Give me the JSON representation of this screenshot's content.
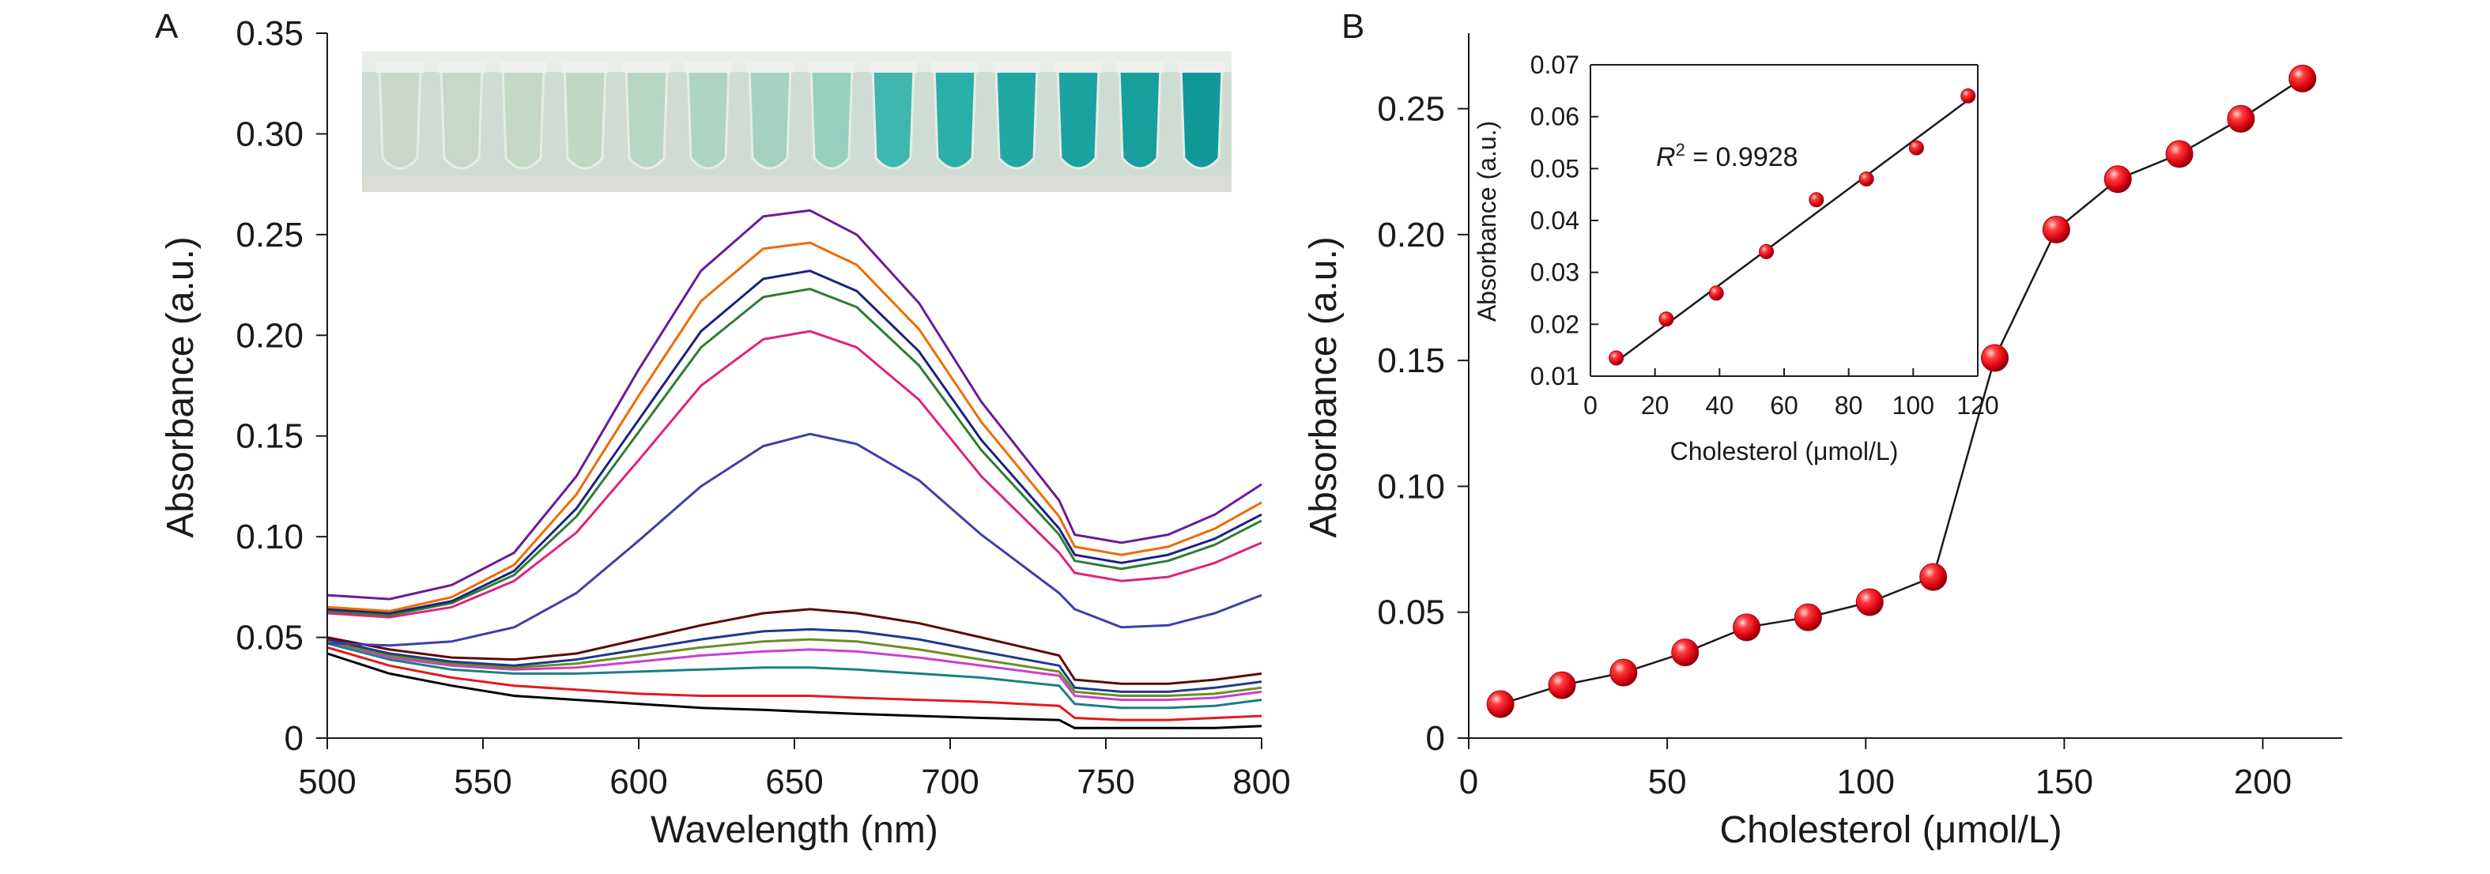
{
  "panel_a_label": "A",
  "panel_b_label": "B",
  "chart_data": [
    {
      "type": "line",
      "panel": "A",
      "xlabel": "Wavelength (nm)",
      "ylabel": "Absorbance (a.u.)",
      "xlim": [
        500,
        800
      ],
      "ylim": [
        0,
        0.35
      ],
      "xticks": [
        "500",
        "550",
        "600",
        "650",
        "700",
        "750",
        "800"
      ],
      "yticks": [
        "0",
        "0.05",
        "0.10",
        "0.15",
        "0.20",
        "0.25",
        "0.30",
        "0.35"
      ],
      "grid": false,
      "legend": "none",
      "x": [
        500,
        520,
        540,
        560,
        580,
        600,
        620,
        640,
        655,
        670,
        690,
        710,
        735,
        740,
        755,
        770,
        785,
        800
      ],
      "series": [
        {
          "color": "#000000",
          "values": [
            0.042,
            0.032,
            0.026,
            0.021,
            0.019,
            0.017,
            0.015,
            0.014,
            0.013,
            0.012,
            0.011,
            0.01,
            0.009,
            0.005,
            0.005,
            0.005,
            0.005,
            0.006
          ]
        },
        {
          "color": "#e31a1c",
          "values": [
            0.045,
            0.036,
            0.03,
            0.026,
            0.024,
            0.022,
            0.021,
            0.021,
            0.021,
            0.02,
            0.019,
            0.018,
            0.016,
            0.01,
            0.009,
            0.009,
            0.01,
            0.011
          ]
        },
        {
          "color": "#1b7f86",
          "values": [
            0.047,
            0.039,
            0.034,
            0.032,
            0.032,
            0.033,
            0.034,
            0.035,
            0.035,
            0.034,
            0.032,
            0.03,
            0.026,
            0.017,
            0.015,
            0.015,
            0.016,
            0.019
          ]
        },
        {
          "color": "#cc3fd1",
          "values": [
            0.048,
            0.04,
            0.036,
            0.034,
            0.035,
            0.038,
            0.041,
            0.043,
            0.044,
            0.043,
            0.04,
            0.036,
            0.031,
            0.021,
            0.019,
            0.019,
            0.02,
            0.023
          ]
        },
        {
          "color": "#6b8e23",
          "values": [
            0.048,
            0.041,
            0.037,
            0.035,
            0.037,
            0.041,
            0.045,
            0.048,
            0.049,
            0.048,
            0.044,
            0.039,
            0.033,
            0.023,
            0.021,
            0.021,
            0.022,
            0.025
          ]
        },
        {
          "color": "#1f3a8a",
          "values": [
            0.049,
            0.042,
            0.038,
            0.036,
            0.039,
            0.044,
            0.049,
            0.053,
            0.054,
            0.053,
            0.049,
            0.043,
            0.036,
            0.025,
            0.023,
            0.023,
            0.025,
            0.028
          ]
        },
        {
          "color": "#5c0a0a",
          "values": [
            0.05,
            0.044,
            0.04,
            0.039,
            0.042,
            0.049,
            0.056,
            0.062,
            0.064,
            0.062,
            0.057,
            0.05,
            0.041,
            0.029,
            0.027,
            0.027,
            0.029,
            0.032
          ]
        },
        {
          "color": "#3f3faa",
          "values": [
            0.047,
            0.046,
            0.048,
            0.055,
            0.072,
            0.098,
            0.125,
            0.145,
            0.151,
            0.146,
            0.128,
            0.101,
            0.072,
            0.064,
            0.055,
            0.056,
            0.062,
            0.071
          ]
        },
        {
          "color": "#e0227f",
          "values": [
            0.062,
            0.06,
            0.065,
            0.078,
            0.102,
            0.138,
            0.175,
            0.198,
            0.202,
            0.194,
            0.168,
            0.13,
            0.092,
            0.082,
            0.078,
            0.08,
            0.087,
            0.097
          ]
        },
        {
          "color": "#2e7d32",
          "values": [
            0.063,
            0.061,
            0.067,
            0.081,
            0.11,
            0.152,
            0.194,
            0.219,
            0.223,
            0.214,
            0.185,
            0.143,
            0.101,
            0.088,
            0.084,
            0.088,
            0.096,
            0.108
          ]
        },
        {
          "color": "#1a237e",
          "values": [
            0.064,
            0.062,
            0.068,
            0.083,
            0.114,
            0.158,
            0.202,
            0.228,
            0.232,
            0.222,
            0.192,
            0.148,
            0.104,
            0.091,
            0.087,
            0.091,
            0.099,
            0.111
          ]
        },
        {
          "color": "#ef6c00",
          "values": [
            0.065,
            0.063,
            0.07,
            0.086,
            0.121,
            0.17,
            0.217,
            0.243,
            0.246,
            0.235,
            0.203,
            0.157,
            0.11,
            0.095,
            0.091,
            0.095,
            0.104,
            0.117
          ]
        },
        {
          "color": "#6a1b9a",
          "values": [
            0.071,
            0.069,
            0.076,
            0.092,
            0.13,
            0.183,
            0.232,
            0.259,
            0.262,
            0.25,
            0.216,
            0.167,
            0.118,
            0.101,
            0.097,
            0.101,
            0.111,
            0.126
          ]
        }
      ]
    },
    {
      "type": "scatter",
      "panel": "B",
      "xlabel": "Cholesterol (μmol/L)",
      "ylabel": "Absorbance (a.u.)",
      "xlim": [
        0,
        220
      ],
      "ylim": [
        0,
        0.28
      ],
      "xticks": [
        "0",
        "50",
        "100",
        "150",
        "200"
      ],
      "yticks": [
        "0",
        "0.05",
        "0.10",
        "0.15",
        "0.20",
        "0.25"
      ],
      "grid": false,
      "legend": "none",
      "marker_color": "#e8121c",
      "x": [
        8,
        23.5,
        39,
        54.5,
        70,
        85.5,
        101,
        117,
        132.5,
        148,
        163.5,
        179,
        194.5,
        210
      ],
      "y": [
        0.0135,
        0.021,
        0.026,
        0.034,
        0.044,
        0.048,
        0.054,
        0.064,
        0.151,
        0.202,
        0.222,
        0.232,
        0.246,
        0.262
      ]
    },
    {
      "type": "scatter",
      "panel": "B-inset",
      "xlabel": "Cholesterol (μmol/L)",
      "ylabel": "Absorbance (a.u.)",
      "xlim": [
        0,
        120
      ],
      "ylim": [
        0.01,
        0.07
      ],
      "xticks": [
        "0",
        "20",
        "40",
        "60",
        "80",
        "100",
        "120"
      ],
      "yticks": [
        "0.01",
        "0.02",
        "0.03",
        "0.04",
        "0.05",
        "0.06",
        "0.07"
      ],
      "grid": false,
      "legend": "none",
      "marker_color": "#e8121c",
      "x": [
        8,
        23.5,
        39,
        54.5,
        70,
        85.5,
        101,
        117
      ],
      "y": [
        0.0135,
        0.021,
        0.026,
        0.034,
        0.044,
        0.048,
        0.054,
        0.064
      ],
      "fit_line": {
        "x": [
          8,
          117
        ],
        "y": [
          0.0128,
          0.0632
        ]
      },
      "annotation": {
        "r_symbol": "R",
        "superscript": "2",
        "text": " = 0.9928"
      }
    }
  ]
}
